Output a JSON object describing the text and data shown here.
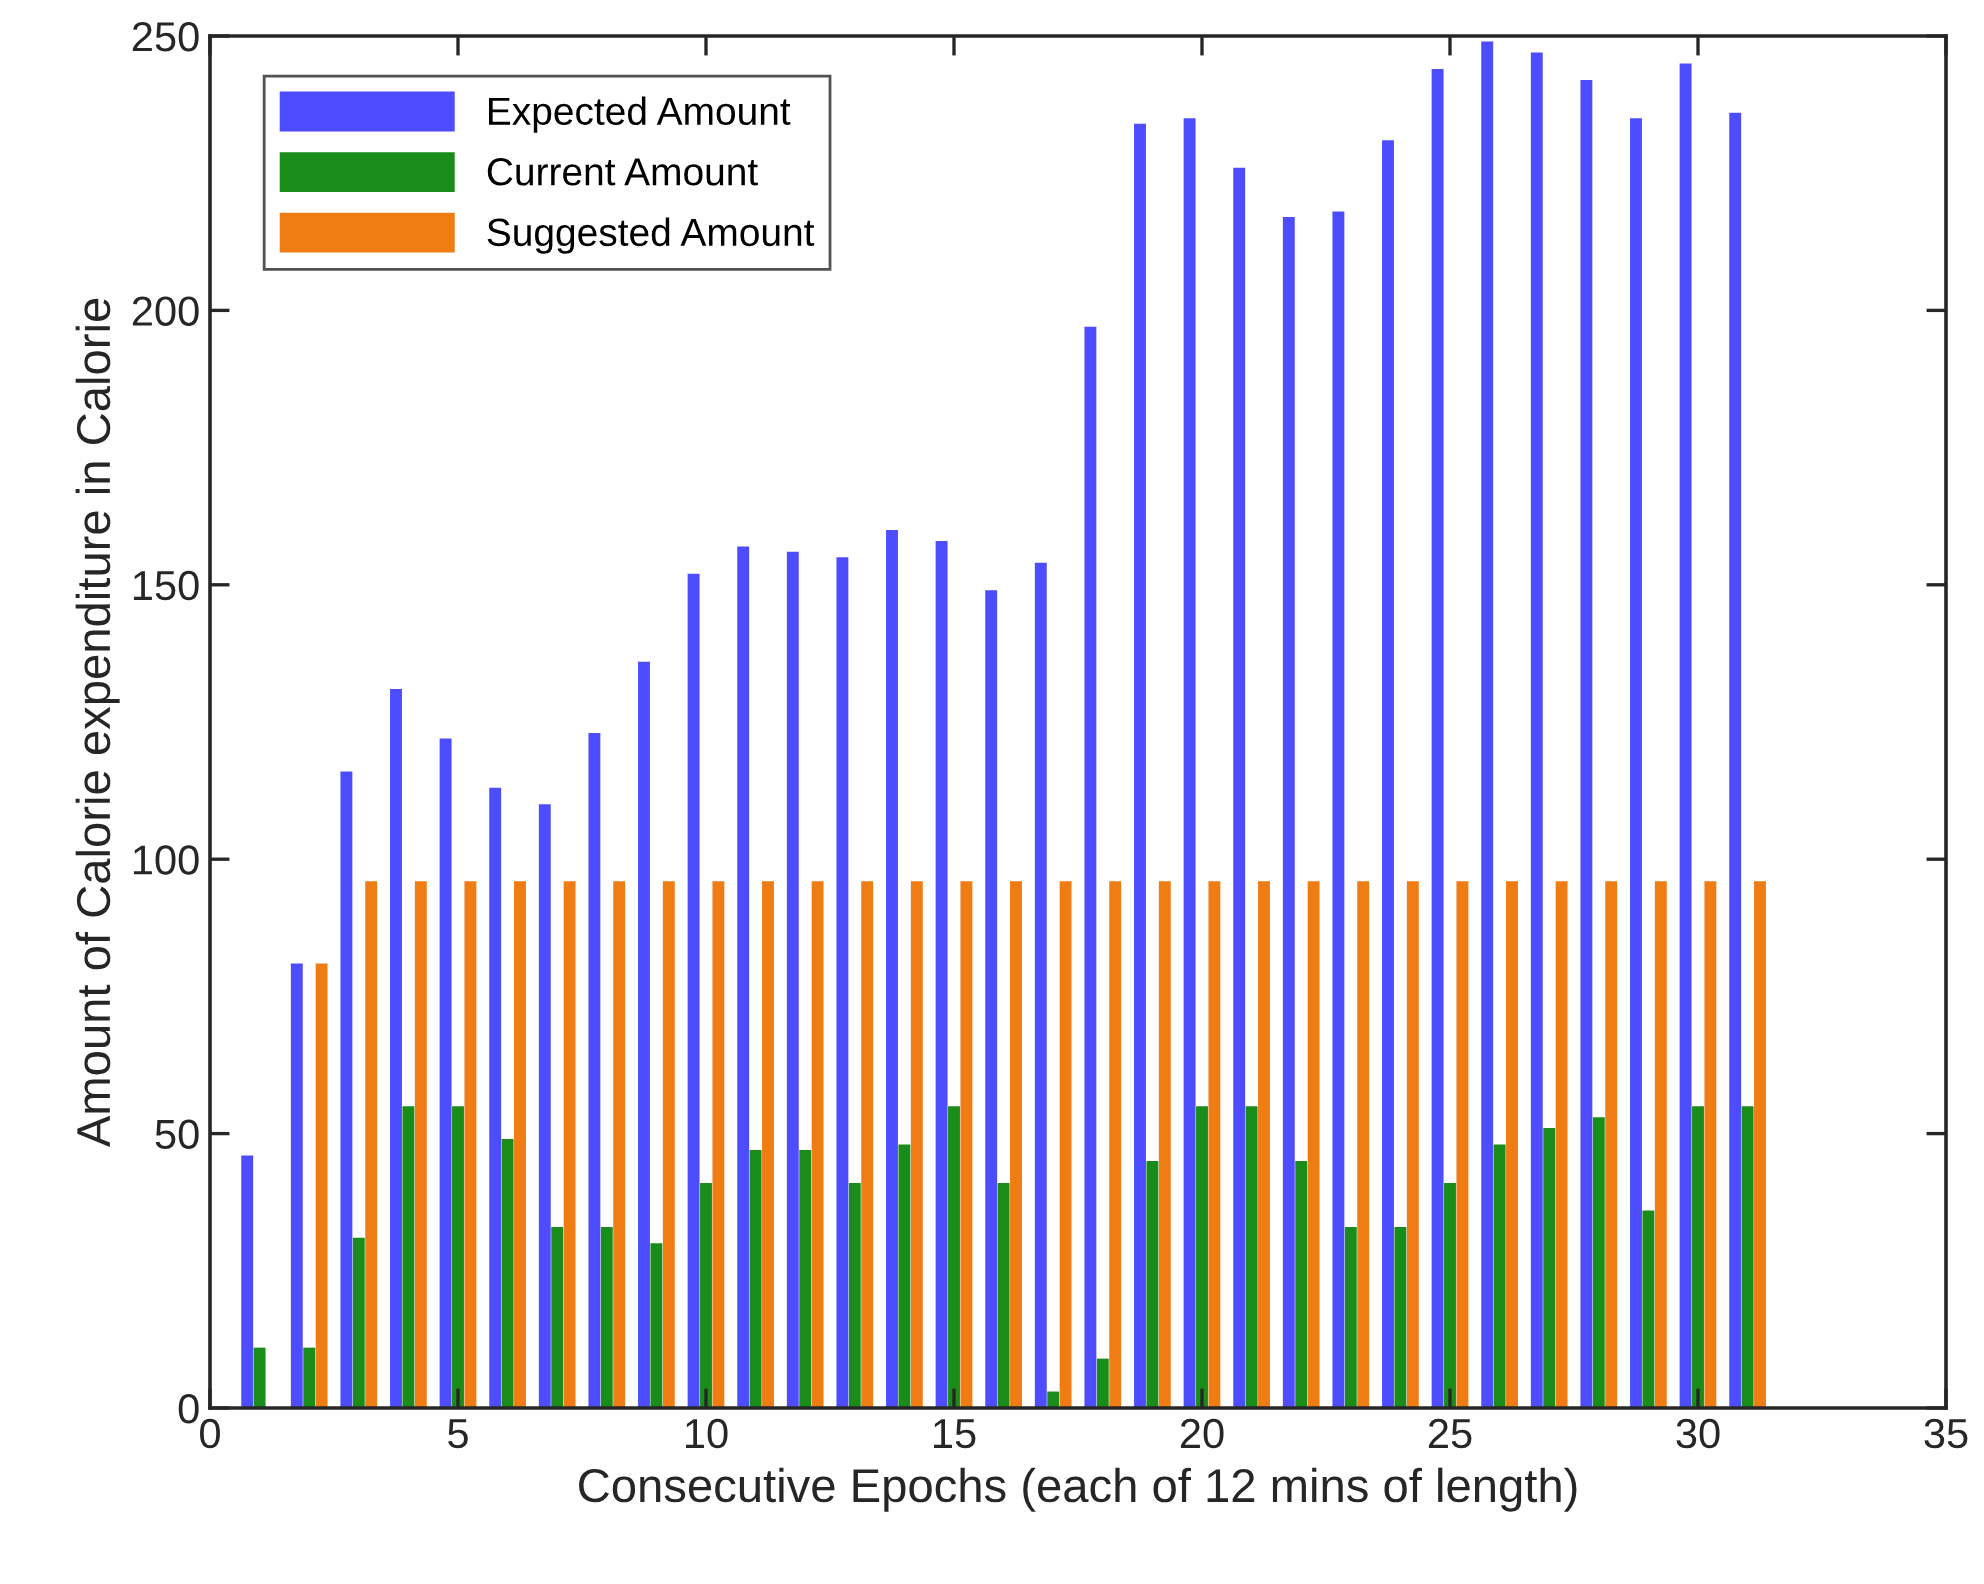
{
  "chart_data": {
    "type": "bar",
    "xlabel": "Consecutive Epochs (each of 12 mins of length)",
    "ylabel": "Amount of Calorie expenditure in Calorie",
    "x": [
      1,
      2,
      3,
      4,
      5,
      6,
      7,
      8,
      9,
      10,
      11,
      12,
      13,
      14,
      15,
      16,
      17,
      18,
      19,
      20,
      21,
      22,
      23,
      24,
      25,
      26,
      27,
      28,
      29,
      30,
      31
    ],
    "series": [
      {
        "name": "Expected Amount",
        "color": "#4d4dff",
        "values": [
          46,
          81,
          116,
          131,
          122,
          113,
          110,
          123,
          136,
          152,
          157,
          156,
          155,
          160,
          158,
          149,
          154,
          197,
          234,
          235,
          226,
          217,
          218,
          231,
          244,
          249,
          247,
          242,
          235,
          245,
          236
        ]
      },
      {
        "name": "Current Amount",
        "color": "#1a8c1a",
        "values": [
          11,
          11,
          31,
          55,
          55,
          49,
          33,
          33,
          30,
          41,
          47,
          47,
          41,
          48,
          55,
          41,
          3,
          9,
          45,
          55,
          55,
          45,
          33,
          33,
          41,
          48,
          51,
          53,
          36,
          55,
          55
        ]
      },
      {
        "name": "Suggested Amount",
        "color": "#f07c14",
        "values": [
          0,
          81,
          96,
          96,
          96,
          96,
          96,
          96,
          96,
          96,
          96,
          96,
          96,
          96,
          96,
          96,
          96,
          96,
          96,
          96,
          96,
          96,
          96,
          96,
          96,
          96,
          96,
          96,
          96,
          96,
          96
        ]
      }
    ],
    "xlim": [
      0,
      35
    ],
    "xticks": [
      0,
      5,
      10,
      15,
      20,
      25,
      30,
      35
    ],
    "ylim": [
      0,
      250
    ],
    "yticks": [
      0,
      50,
      100,
      150,
      200,
      250
    ],
    "grid": false,
    "legend": "top left"
  }
}
